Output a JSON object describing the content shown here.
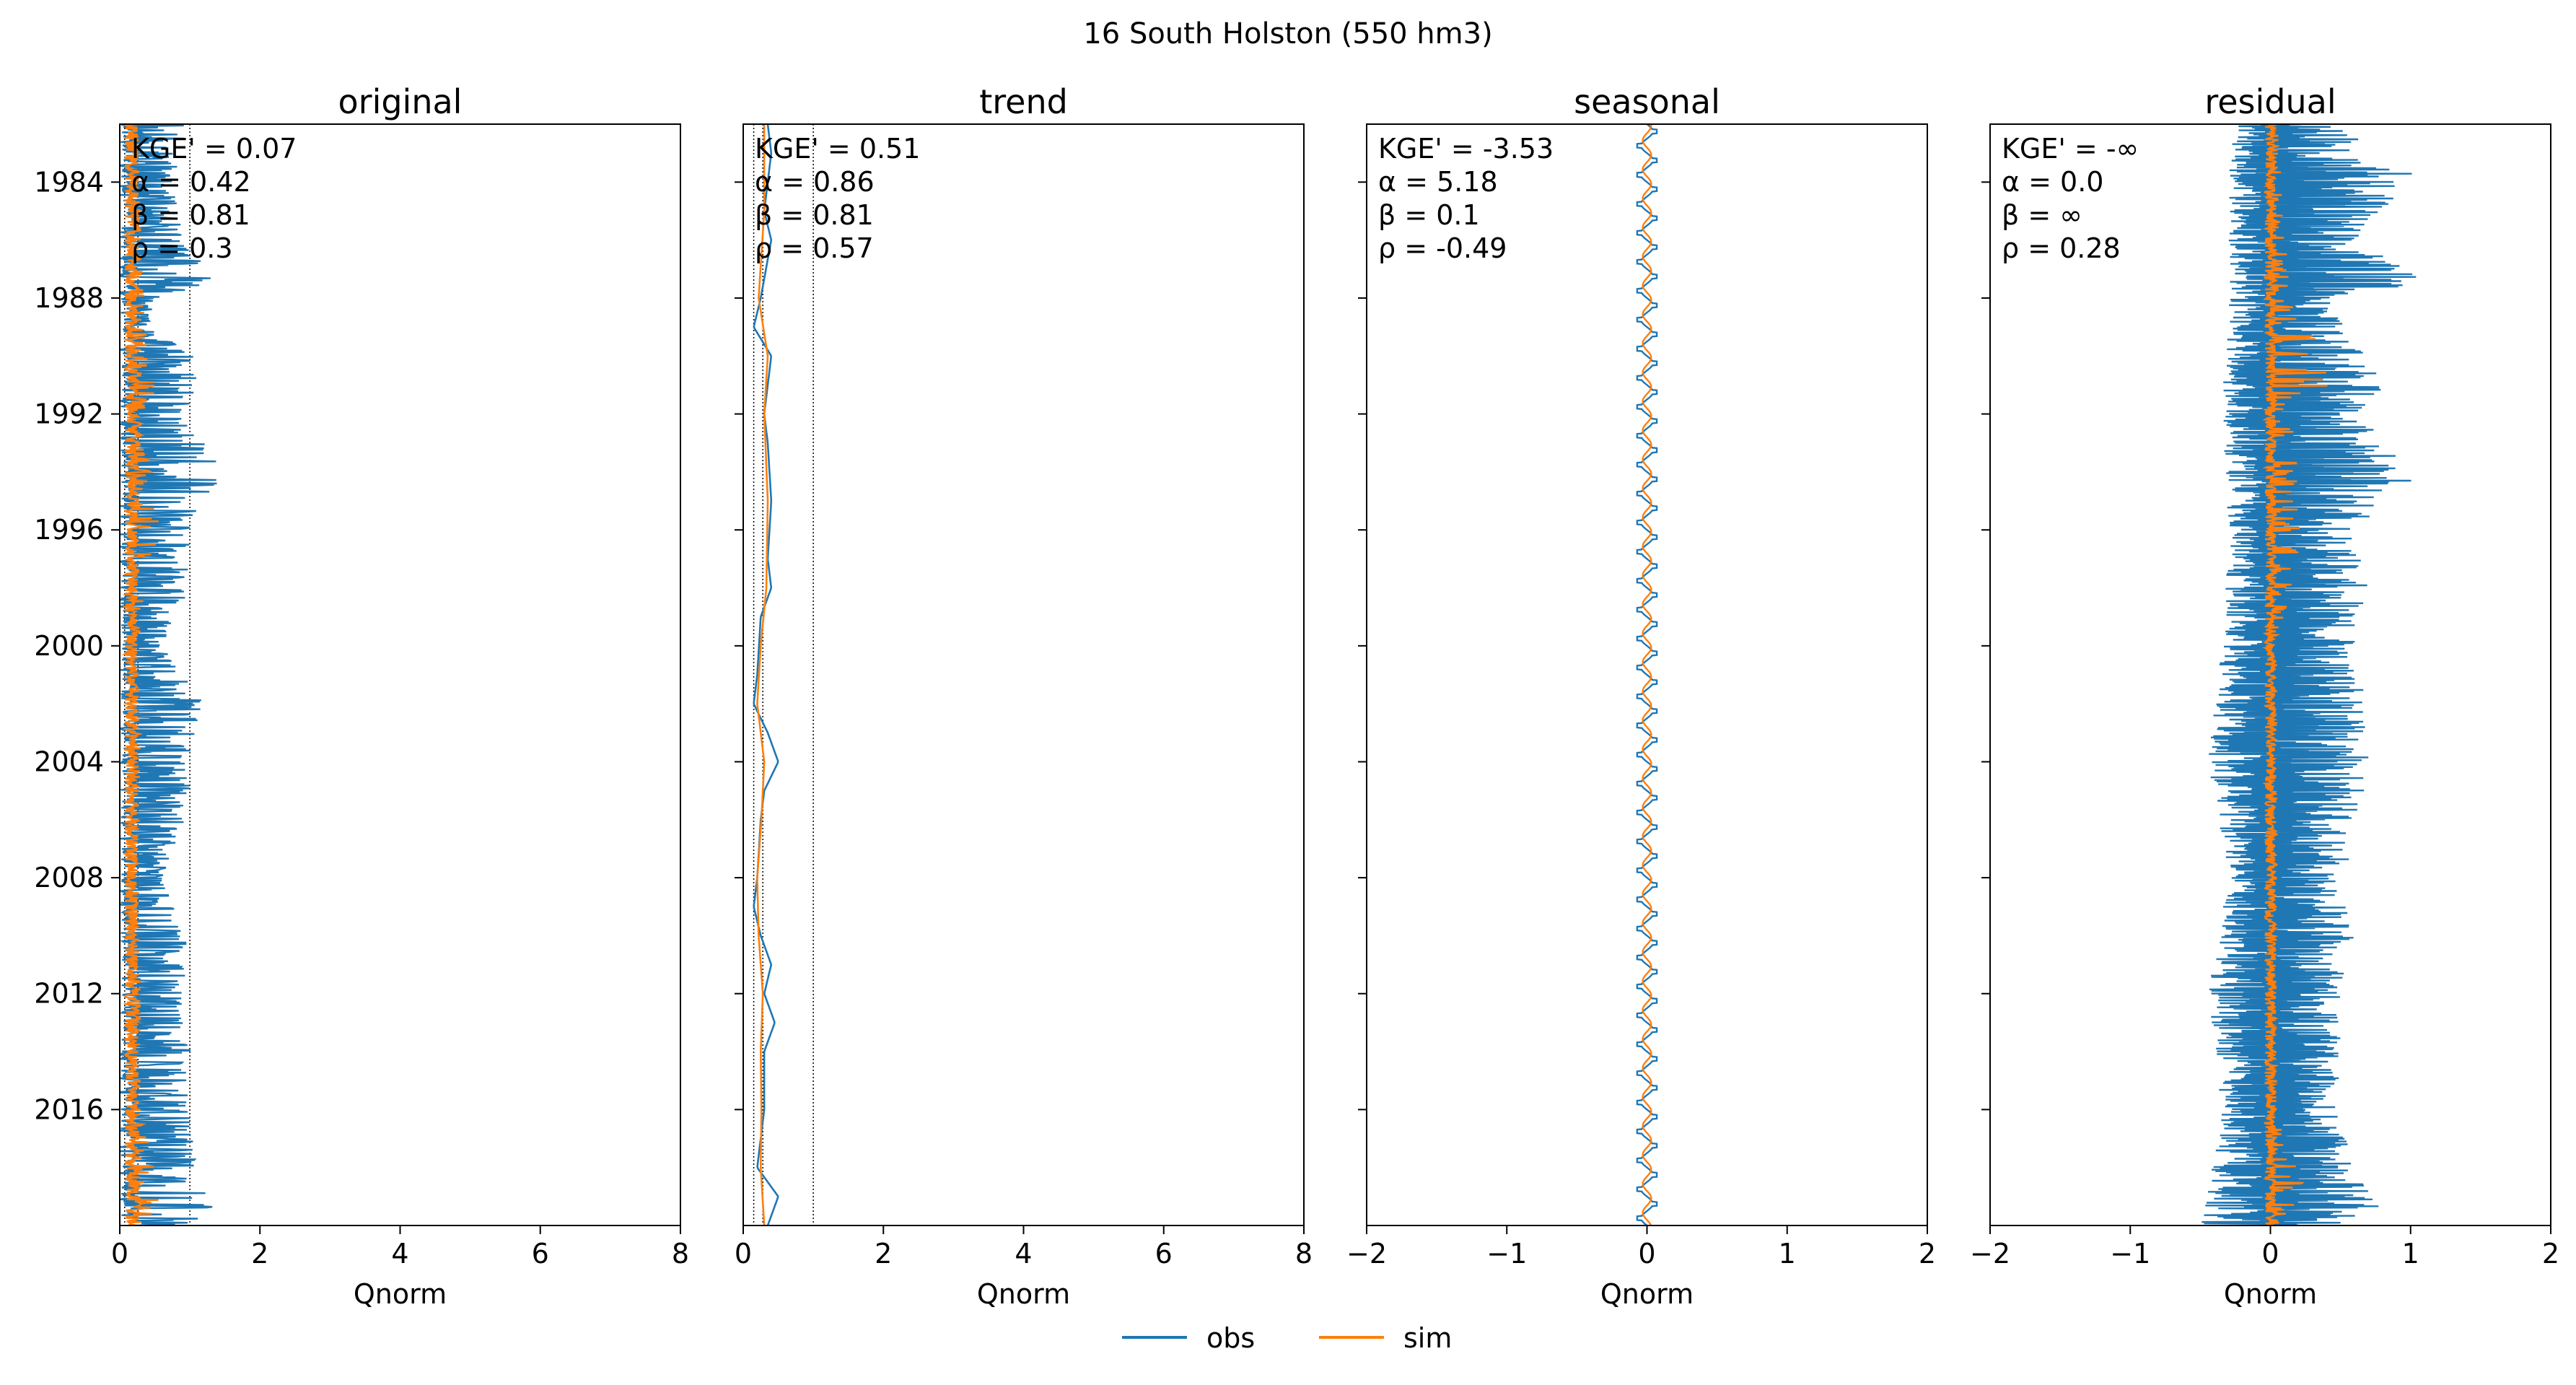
{
  "figure": {
    "suptitle": "16  South Holston (550 hm3)",
    "legend": [
      {
        "label": "obs",
        "color": "#1f77b4"
      },
      {
        "label": "sim",
        "color": "#ff7f0e"
      }
    ],
    "legend_placement": "bottom-center",
    "obs_color": "#1f77b4",
    "sim_color": "#ff7f0e"
  },
  "chart_data": [
    {
      "type": "line",
      "title": "original",
      "xlabel": "Qnorm",
      "ylabel": "",
      "xlim": [
        0,
        8
      ],
      "xticks": [
        0,
        2,
        4,
        6,
        8
      ],
      "xtick_labels": [
        "0",
        "2",
        "4",
        "6",
        "8"
      ],
      "ylim": [
        1982.0,
        2020.0
      ],
      "yticks": [
        1984,
        1988,
        1992,
        1996,
        2000,
        2004,
        2008,
        2012,
        2016
      ],
      "ytick_labels": [
        "1984",
        "1988",
        "1992",
        "1996",
        "2000",
        "2004",
        "2008",
        "2012",
        "2016"
      ],
      "reference_lines_x": [
        0.07,
        0.26,
        1.0
      ],
      "annotations": [
        "KGE' = 0.07",
        "α = 0.42",
        "β = 0.81",
        "ρ = 0.3"
      ],
      "obs_profile": [
        [
          1982,
          1.0
        ],
        [
          1984,
          0.8
        ],
        [
          1986,
          0.9
        ],
        [
          1987.5,
          1.5
        ],
        [
          1988,
          0.5
        ],
        [
          1989,
          0.4
        ],
        [
          1990,
          1.1
        ],
        [
          1991,
          1.2
        ],
        [
          1992,
          0.9
        ],
        [
          1994,
          1.5
        ],
        [
          1996,
          1.0
        ],
        [
          1998,
          1.0
        ],
        [
          2000,
          0.6
        ],
        [
          2002,
          1.2
        ],
        [
          2004,
          1.0
        ],
        [
          2006,
          1.0
        ],
        [
          2008,
          0.6
        ],
        [
          2010,
          1.0
        ],
        [
          2012,
          0.9
        ],
        [
          2014,
          1.0
        ],
        [
          2016,
          1.0
        ],
        [
          2018,
          1.1
        ],
        [
          2019.5,
          1.4
        ],
        [
          2020,
          1.0
        ]
      ],
      "sim_profile": [
        [
          1982,
          0.25
        ],
        [
          1988,
          0.35
        ],
        [
          1990,
          0.4
        ],
        [
          1991,
          0.6
        ],
        [
          1992,
          0.3
        ],
        [
          1996,
          0.6
        ],
        [
          1998,
          0.4
        ],
        [
          2000,
          0.25
        ],
        [
          2004,
          0.3
        ],
        [
          2008,
          0.25
        ],
        [
          2012,
          0.3
        ],
        [
          2016,
          0.3
        ],
        [
          2019,
          0.7
        ],
        [
          2020,
          0.3
        ]
      ],
      "obs_smooth": [
        [
          1982,
          0.25
        ],
        [
          1988,
          0.2
        ],
        [
          1992,
          0.28
        ],
        [
          1996,
          0.3
        ],
        [
          2000,
          0.18
        ],
        [
          2004,
          0.28
        ],
        [
          2008,
          0.2
        ],
        [
          2012,
          0.28
        ],
        [
          2016,
          0.26
        ],
        [
          2020,
          0.3
        ]
      ],
      "sim_smooth": [
        [
          1982,
          0.25
        ],
        [
          1988,
          0.22
        ],
        [
          1992,
          0.25
        ],
        [
          1996,
          0.27
        ],
        [
          2000,
          0.22
        ],
        [
          2004,
          0.24
        ],
        [
          2008,
          0.23
        ],
        [
          2012,
          0.25
        ],
        [
          2016,
          0.24
        ],
        [
          2020,
          0.28
        ]
      ],
      "center": 0,
      "obs_mode": "spiky",
      "obs_min_factor": 0.02,
      "sim_min_factor": 0.3,
      "seed": 11
    },
    {
      "type": "line",
      "title": "trend",
      "xlabel": "Qnorm",
      "ylabel": "",
      "xlim": [
        0,
        8
      ],
      "xticks": [
        0,
        2,
        4,
        6,
        8
      ],
      "xtick_labels": [
        "0",
        "2",
        "4",
        "6",
        "8"
      ],
      "ylim": [
        1982.0,
        2020.0
      ],
      "yticks": [
        1984,
        1988,
        1992,
        1996,
        2000,
        2004,
        2008,
        2012,
        2016
      ],
      "ytick_labels": [
        "",
        "",
        "",
        "",
        "",
        "",
        "",
        "",
        ""
      ],
      "reference_lines_x": [
        0.15,
        0.28,
        1.0
      ],
      "annotations": [
        "KGE' = 0.51",
        "α = 0.86",
        "β = 0.81",
        "ρ = 0.57"
      ],
      "obs_profile": [
        [
          1982,
          0.35
        ],
        [
          1983,
          0.4
        ],
        [
          1985,
          0.3
        ],
        [
          1986,
          0.4
        ],
        [
          1988,
          0.25
        ],
        [
          1989,
          0.15
        ],
        [
          1990,
          0.4
        ],
        [
          1991,
          0.35
        ],
        [
          1992,
          0.3
        ],
        [
          1993,
          0.35
        ],
        [
          1995,
          0.4
        ],
        [
          1997,
          0.35
        ],
        [
          1998,
          0.4
        ],
        [
          1999,
          0.25
        ],
        [
          2001,
          0.2
        ],
        [
          2002,
          0.15
        ],
        [
          2003,
          0.35
        ],
        [
          2004,
          0.5
        ],
        [
          2005,
          0.3
        ],
        [
          2006,
          0.25
        ],
        [
          2008,
          0.2
        ],
        [
          2009,
          0.15
        ],
        [
          2010,
          0.25
        ],
        [
          2011,
          0.4
        ],
        [
          2012,
          0.3
        ],
        [
          2013,
          0.45
        ],
        [
          2014,
          0.3
        ],
        [
          2016,
          0.3
        ],
        [
          2017,
          0.25
        ],
        [
          2018,
          0.2
        ],
        [
          2019,
          0.5
        ],
        [
          2020,
          0.35
        ]
      ],
      "sim_profile": [
        [
          1982,
          0.3
        ],
        [
          1985,
          0.3
        ],
        [
          1988,
          0.22
        ],
        [
          1990,
          0.35
        ],
        [
          1992,
          0.3
        ],
        [
          1995,
          0.35
        ],
        [
          1998,
          0.33
        ],
        [
          2000,
          0.25
        ],
        [
          2002,
          0.2
        ],
        [
          2004,
          0.3
        ],
        [
          2006,
          0.26
        ],
        [
          2008,
          0.2
        ],
        [
          2010,
          0.22
        ],
        [
          2012,
          0.28
        ],
        [
          2014,
          0.25
        ],
        [
          2016,
          0.26
        ],
        [
          2018,
          0.25
        ],
        [
          2020,
          0.3
        ]
      ],
      "center": 0,
      "obs_mode": "line",
      "seed": 23
    },
    {
      "type": "line",
      "title": "seasonal",
      "xlabel": "Qnorm",
      "ylabel": "",
      "xlim": [
        -2,
        2
      ],
      "xticks": [
        -2,
        -1,
        0,
        1,
        2
      ],
      "xtick_labels": [
        "−2",
        "−1",
        "0",
        "1",
        "2"
      ],
      "ylim": [
        1982.0,
        2020.0
      ],
      "yticks": [
        1984,
        1988,
        1992,
        1996,
        2000,
        2004,
        2008,
        2012,
        2016
      ],
      "ytick_labels": [
        "",
        "",
        "",
        "",
        "",
        "",
        "",
        "",
        ""
      ],
      "reference_lines_x": [],
      "annotations": [
        "KGE' = -3.53",
        "α = 5.18",
        "β = 0.1",
        "ρ = -0.49"
      ],
      "obs_amplitude": 0.07,
      "sim_amplitude": 0.03,
      "center": 0,
      "obs_mode": "seasonal",
      "seed": 37
    },
    {
      "type": "line",
      "title": "residual",
      "xlabel": "Qnorm",
      "ylabel": "",
      "xlim": [
        -2,
        2
      ],
      "xticks": [
        -2,
        -1,
        0,
        1,
        2
      ],
      "xtick_labels": [
        "−2",
        "−1",
        "0",
        "1",
        "2"
      ],
      "ylim": [
        1982.0,
        2020.0
      ],
      "yticks": [
        1984,
        1988,
        1992,
        1996,
        2000,
        2004,
        2008,
        2012,
        2016
      ],
      "ytick_labels": [
        "",
        "",
        "",
        "",
        "",
        "",
        "",
        "",
        ""
      ],
      "reference_lines_x": [],
      "annotations": [
        "KGE' = -∞",
        "α = 0.0",
        "β = ∞",
        "ρ = 0.28"
      ],
      "obs_profile": [
        [
          1982,
          0.5
        ],
        [
          1984,
          1.1
        ],
        [
          1986,
          0.6
        ],
        [
          1987.5,
          1.15
        ],
        [
          1988,
          0.4
        ],
        [
          1990,
          0.7
        ],
        [
          1991,
          0.9
        ],
        [
          1992,
          0.6
        ],
        [
          1994,
          1.1
        ],
        [
          1996,
          0.6
        ],
        [
          1998,
          0.7
        ],
        [
          2000,
          0.6
        ],
        [
          2002,
          0.7
        ],
        [
          2004,
          0.7
        ],
        [
          2006,
          0.7
        ],
        [
          2008,
          0.5
        ],
        [
          2010,
          0.6
        ],
        [
          2012,
          0.5
        ],
        [
          2014,
          0.5
        ],
        [
          2016,
          0.5
        ],
        [
          2018,
          0.6
        ],
        [
          2019.5,
          0.8
        ],
        [
          2020,
          0.5
        ]
      ],
      "obs_neg_profile": [
        [
          1982,
          0.3
        ],
        [
          1988,
          0.3
        ],
        [
          1992,
          0.35
        ],
        [
          1996,
          0.3
        ],
        [
          2000,
          0.35
        ],
        [
          2004,
          0.45
        ],
        [
          2008,
          0.3
        ],
        [
          2012,
          0.45
        ],
        [
          2016,
          0.35
        ],
        [
          2020,
          0.5
        ]
      ],
      "sim_profile": [
        [
          1982,
          0.05
        ],
        [
          1988,
          0.15
        ],
        [
          1990,
          0.4
        ],
        [
          1991,
          0.45
        ],
        [
          1992,
          0.15
        ],
        [
          1996,
          0.25
        ],
        [
          1998,
          0.15
        ],
        [
          2000,
          0.05
        ],
        [
          2004,
          0.05
        ],
        [
          2008,
          0.05
        ],
        [
          2012,
          0.05
        ],
        [
          2016,
          0.05
        ],
        [
          2019,
          0.3
        ],
        [
          2020,
          0.05
        ]
      ],
      "center": 0,
      "obs_mode": "residual",
      "seed": 53
    }
  ]
}
